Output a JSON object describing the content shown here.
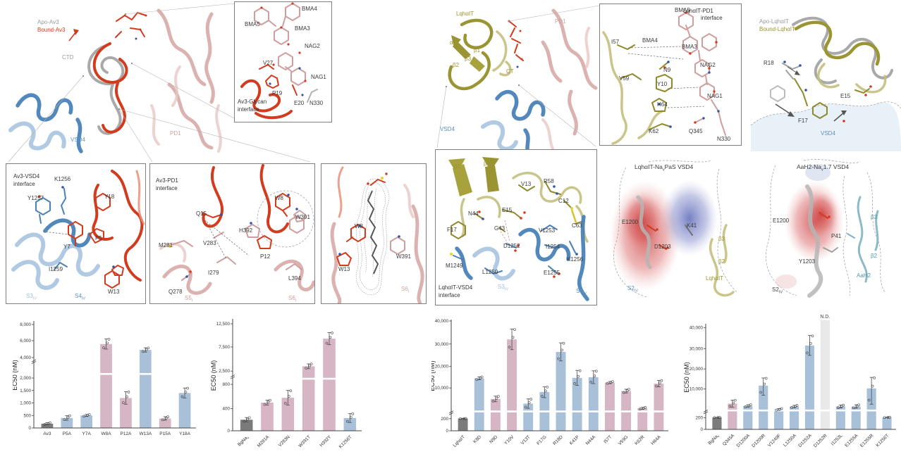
{
  "palette": {
    "bar_gray": "#7b7b7b",
    "bar_blue": "#a9c0d9",
    "bar_pink": "#d6b6c5",
    "bar_nd": "#e9e9e9",
    "apo_gray": "#9a9a9a",
    "bound_red": "#d23b1e",
    "vsd_blue": "#4a82b8",
    "pd_pink": "#cf9f9f",
    "toxin_olive": "#9a9432",
    "aah2_teal": "#4f93a8"
  },
  "panels": {
    "av3_overview": {
      "legend_apo": "Apo-Av3",
      "legend_bound": "Bound-Av3",
      "ctd": "CTD",
      "vsd4": "VSD4",
      "pd1": "PD1"
    },
    "av3_glycan": {
      "title1": "Av3-Glycan",
      "title2": "interface",
      "bma5": "BMA5",
      "bma4": "BMA4",
      "bma3": "BMA3",
      "nag2": "NAG2",
      "nag1": "NAG1",
      "v27": "V27",
      "p19": "P19",
      "e20": "E20",
      "n330": "N330"
    },
    "av3_vsd4": {
      "title1": "Av3-VSD4",
      "title2": "interface",
      "k1256": "K1256",
      "y1257": "Y1257",
      "y18": "Y18",
      "p5": "P5",
      "y7": "Y7",
      "i1259": "I1259",
      "w13": "W13",
      "s3": "S3",
      "s3sub": "IV",
      "s4": "S4",
      "s4sub": "IV"
    },
    "av3_pd1": {
      "title1": "Av3-PD1",
      "title2": "interface",
      "q15": "Q15",
      "m281": "M281",
      "v283": "V283",
      "h392": "H392",
      "w8": "W8",
      "w391": "W391",
      "p12": "P12",
      "i279": "I279",
      "q278": "Q278",
      "l394": "L394",
      "s5": "S5",
      "s5sub": "I",
      "s6": "S6",
      "s6sub": "I"
    },
    "lipid": {
      "w8": "W8",
      "w13": "W13",
      "w391": "W391",
      "s6": "S6",
      "s6sub": "I"
    },
    "lqh_overview": {
      "toxin": "LqhαIT",
      "pd1": "PD1",
      "a1": "α1",
      "b1": "β1",
      "b2": "β2",
      "b3": "β3",
      "ct": "CT",
      "vsd4": "VSD4"
    },
    "lqh_pd1": {
      "title1": "LqhαIT-PD1",
      "title2": "interface",
      "bma5": "BMA5",
      "bma4": "BMA4",
      "bma3": "BMA3",
      "nag2": "NAG2",
      "nag1": "NAG1",
      "i57": "I57",
      "n9": "N9",
      "v59": "V59",
      "y10": "Y10",
      "h64": "H64",
      "k62": "K62",
      "q345": "Q345",
      "n330": "N330"
    },
    "lqh_apo": {
      "legend_apo": "Apo-LqhαIT",
      "legend_bound": "Bound-LqhαIT",
      "r18": "R18",
      "e15": "E15",
      "f17": "F17",
      "vsd4": "VSD4"
    },
    "lqh_vsd4": {
      "title1": "LqhαIT-VSD4",
      "title2": "interface",
      "b2": "β2",
      "b3": "β3",
      "v13": "V13",
      "r58": "R58",
      "c12": "C12",
      "n44": "N44",
      "e15": "E15",
      "f17": "F17",
      "g43": "G43",
      "v1253": "V1253",
      "c63": "C63",
      "d1252": "D1252",
      "i1254": "I1254",
      "m1249": "M1249",
      "l1250": "L1250",
      "k1256": "K1256",
      "e1255": "E1255",
      "s3": "S3",
      "s3sub": "IV",
      "s4": "S4",
      "s4sub": "IV"
    },
    "lqh_navpas": {
      "title_pre": "LqhαIT-Na",
      "title_sub": "v",
      "title_post": "PaS VSD4",
      "e1200": "E1200",
      "d1203": "D1203",
      "k41": "K41",
      "b3": "β3",
      "b2": "β2",
      "toxin": "LqhαIT",
      "s2": "S2",
      "s2sub": "IV"
    },
    "aah2_nav17": {
      "title_pre": "AaH2-Na",
      "title_sub": "v",
      "title_post": "1.7 VSD4",
      "e1200": "E1200",
      "p41": "P41",
      "y1203": "Y1203",
      "b3": "β3",
      "b2": "β2",
      "toxin": "AaH2",
      "s2": "S2",
      "s2sub": "IV"
    }
  },
  "chart_data": [
    {
      "type": "bar",
      "ylabel": "EC50 (nM)",
      "grid": false,
      "legend_position": "none",
      "categories": [
        "Av3",
        "P5A",
        "Y7A",
        "W8A",
        "P12A",
        "W13A",
        "P15A",
        "Y18A"
      ],
      "values": [
        170,
        400,
        500,
        5600,
        1200,
        4900,
        380,
        1400
      ],
      "errors": [
        40,
        90,
        40,
        600,
        250,
        250,
        70,
        200
      ],
      "colors": [
        "gray",
        "blue",
        "blue",
        "pink",
        "pink",
        "blue",
        "pink",
        "blue"
      ],
      "yticks": [
        {
          "v": 0,
          "label": "0"
        },
        {
          "v": 500,
          "label": "500"
        },
        {
          "v": 1000,
          "label": "1,000"
        },
        {
          "v": 1500,
          "label": "1,500"
        },
        {
          "v": 2000,
          "label": "2,000"
        },
        {
          "v": 4000,
          "label": "4,000"
        },
        {
          "v": 6000,
          "label": "6,000"
        },
        {
          "v": 8000,
          "label": "8,000"
        }
      ],
      "ylim": [
        0,
        8000
      ],
      "axis_break": {
        "between": [
          2000,
          4000
        ],
        "bar_gap_frac": 0.5,
        "axis_mark_frac": 0.63
      },
      "scale_anchors": [
        [
          0,
          0
        ],
        [
          2000,
          0.473
        ],
        [
          4000,
          0.667
        ],
        [
          6000,
          0.827
        ],
        [
          8000,
          0.98
        ]
      ],
      "xlabel_rotate": 0
    },
    {
      "type": "bar",
      "ylabel": "EC50 (nM)",
      "grid": false,
      "legend_position": "none",
      "categories": [
        "BgNa_v",
        "M281A",
        "V283N",
        "W391T",
        "H392Y",
        "K1256T"
      ],
      "values": [
        200,
        500,
        580,
        3500,
        9300,
        230
      ],
      "errors": [
        40,
        40,
        120,
        500,
        1300,
        80
      ],
      "colors": [
        "gray",
        "pink",
        "pink",
        "pink",
        "pink",
        "blue"
      ],
      "yticks": [
        {
          "v": 0,
          "label": "0"
        },
        {
          "v": 400,
          "label": "400"
        },
        {
          "v": 800,
          "label": "800"
        },
        {
          "v": 2500,
          "label": "2,500"
        },
        {
          "v": 7500,
          "label": "7,500"
        },
        {
          "v": 12500,
          "label": "12,500"
        }
      ],
      "ylim": [
        0,
        12500
      ],
      "axis_break": {
        "between": [
          800,
          2500
        ],
        "bar_gap_frac": 0.46,
        "axis_mark_frac": 0.49
      },
      "scale_anchors": [
        [
          0,
          0
        ],
        [
          400,
          0.2
        ],
        [
          800,
          0.42
        ],
        [
          2500,
          0.54
        ],
        [
          7500,
          0.758
        ],
        [
          12500,
          0.968
        ]
      ],
      "xlabel_rotate": 45
    },
    {
      "type": "bar",
      "ylabel": "EC50 (nM)",
      "grid": false,
      "legend_position": "none",
      "categories": [
        "LqhαIT",
        "K8D",
        "N9D",
        "Y10V",
        "V13T",
        "F17G",
        "R18D",
        "K41P",
        "N44A",
        "I57T",
        "V59G",
        "K62R",
        "H64A"
      ],
      "values": [
        250,
        14500,
        6500,
        32000,
        5000,
        8700,
        26500,
        14700,
        15000,
        12500,
        9000,
        3500,
        12000
      ],
      "errors": [
        25,
        700,
        900,
        4500,
        1500,
        1800,
        4000,
        3500,
        3000,
        500,
        600,
        300,
        1500
      ],
      "colors": [
        "gray",
        "blue",
        "pink",
        "pink",
        "blue",
        "blue",
        "blue",
        "blue",
        "blue",
        "pink",
        "pink",
        "pink",
        "pink"
      ],
      "yticks": [
        {
          "v": 0,
          "label": "0"
        },
        {
          "v": 200,
          "label": "200"
        },
        {
          "v": 10000,
          "label": "10,000"
        },
        {
          "v": 20000,
          "label": "20,000"
        },
        {
          "v": 30000,
          "label": "30,000"
        },
        {
          "v": 40000,
          "label": "40,000"
        }
      ],
      "ylim": [
        0,
        40000
      ],
      "axis_break": {
        "between": [
          200,
          10000
        ],
        "bar_gap_frac": 0.165,
        "axis_mark_frac": 0.165
      },
      "scale_anchors": [
        [
          0,
          0
        ],
        [
          200,
          0.11
        ],
        [
          10000,
          0.39
        ],
        [
          20000,
          0.585
        ],
        [
          30000,
          0.79
        ],
        [
          40000,
          1.0
        ]
      ],
      "xlabel_rotate": 45
    },
    {
      "type": "bar",
      "ylabel": "EC50 (nM)",
      "grid": false,
      "legend_position": "none",
      "categories": [
        "BgNa_v",
        "Q345A",
        "D1200A",
        "D1200R",
        "V1249F",
        "L1250A",
        "D1252A",
        "D1252R",
        "I1253L",
        "E1255A",
        "E1255R",
        "K1256T"
      ],
      "values": [
        250,
        5000,
        4200,
        11700,
        3000,
        4000,
        31500,
        null,
        4000,
        4000,
        10300,
        280
      ],
      "errors": [
        30,
        1200,
        400,
        3800,
        300,
        400,
        4800,
        null,
        500,
        600,
        5500,
        60
      ],
      "colors": [
        "gray",
        "pink",
        "blue",
        "blue",
        "blue",
        "blue",
        "blue",
        "nd",
        "blue",
        "blue",
        "blue",
        "blue"
      ],
      "nd_label": "N.D.",
      "yticks": [
        {
          "v": 0,
          "label": "0"
        },
        {
          "v": 200,
          "label": "200"
        },
        {
          "v": 10000,
          "label": "10,000"
        },
        {
          "v": 20000,
          "label": "20,000"
        },
        {
          "v": 30000,
          "label": "30,000"
        },
        {
          "v": 40000,
          "label": "40,000"
        }
      ],
      "ylim": [
        0,
        40000
      ],
      "axis_break": {
        "between": [
          200,
          10000
        ],
        "bar_gap_frac": 0.17,
        "axis_mark_frac": 0.17
      },
      "scale_anchors": [
        [
          0,
          0
        ],
        [
          200,
          0.1125
        ],
        [
          10000,
          0.3875
        ],
        [
          20000,
          0.58
        ],
        [
          30000,
          0.775
        ],
        [
          40000,
          0.975
        ]
      ],
      "xlabel_rotate": 45
    }
  ]
}
